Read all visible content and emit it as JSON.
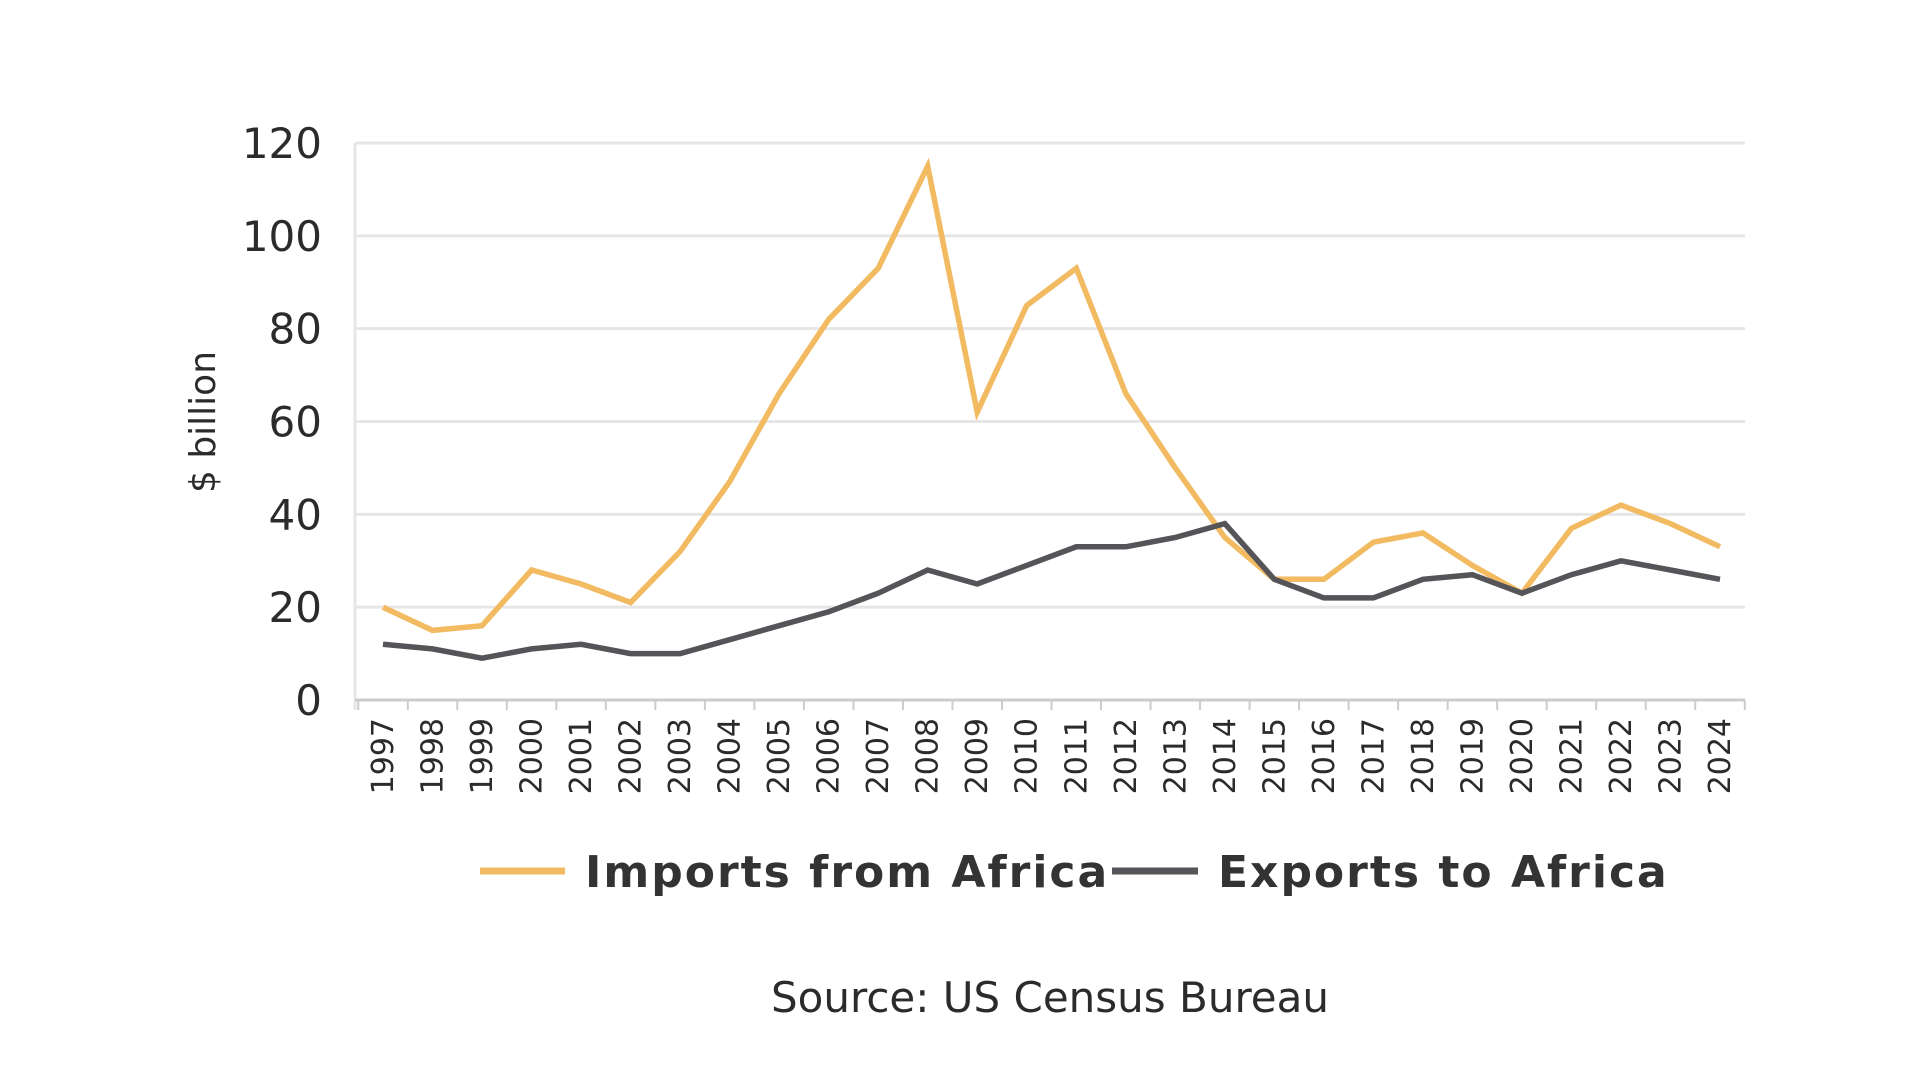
{
  "chart_data": {
    "type": "line",
    "title": "",
    "xlabel": "",
    "ylabel": "$ billion",
    "ylim": [
      0,
      120
    ],
    "yticks": [
      0,
      20,
      40,
      60,
      80,
      100,
      120
    ],
    "grid": true,
    "legend_position": "bottom",
    "categories": [
      "1997",
      "1998",
      "1999",
      "2000",
      "2001",
      "2002",
      "2003",
      "2004",
      "2005",
      "2006",
      "2007",
      "2008",
      "2009",
      "2010",
      "2011",
      "2012",
      "2013",
      "2014",
      "2015",
      "2016",
      "2017",
      "2018",
      "2019",
      "2020",
      "2021",
      "2022",
      "2023",
      "2024"
    ],
    "series": [
      {
        "name": "Imports from Africa",
        "color": "#F2BA61",
        "values": [
          20,
          15,
          16,
          28,
          25,
          21,
          32,
          47,
          66,
          82,
          93,
          115,
          62,
          85,
          93,
          66,
          50,
          35,
          26,
          26,
          34,
          36,
          29,
          23,
          37,
          42,
          38,
          33
        ]
      },
      {
        "name": "Exports to Africa",
        "color": "#555559",
        "values": [
          12,
          11,
          9,
          11,
          12,
          10,
          10,
          13,
          16,
          19,
          23,
          28,
          25,
          29,
          33,
          33,
          35,
          38,
          26,
          22,
          22,
          26,
          27,
          23,
          27,
          30,
          28,
          26
        ]
      }
    ],
    "source": "Source: US Census Bureau"
  },
  "colors": {
    "grid": "#e6e6e6",
    "axis": "#cccccc",
    "text": "#2b2b2b"
  }
}
